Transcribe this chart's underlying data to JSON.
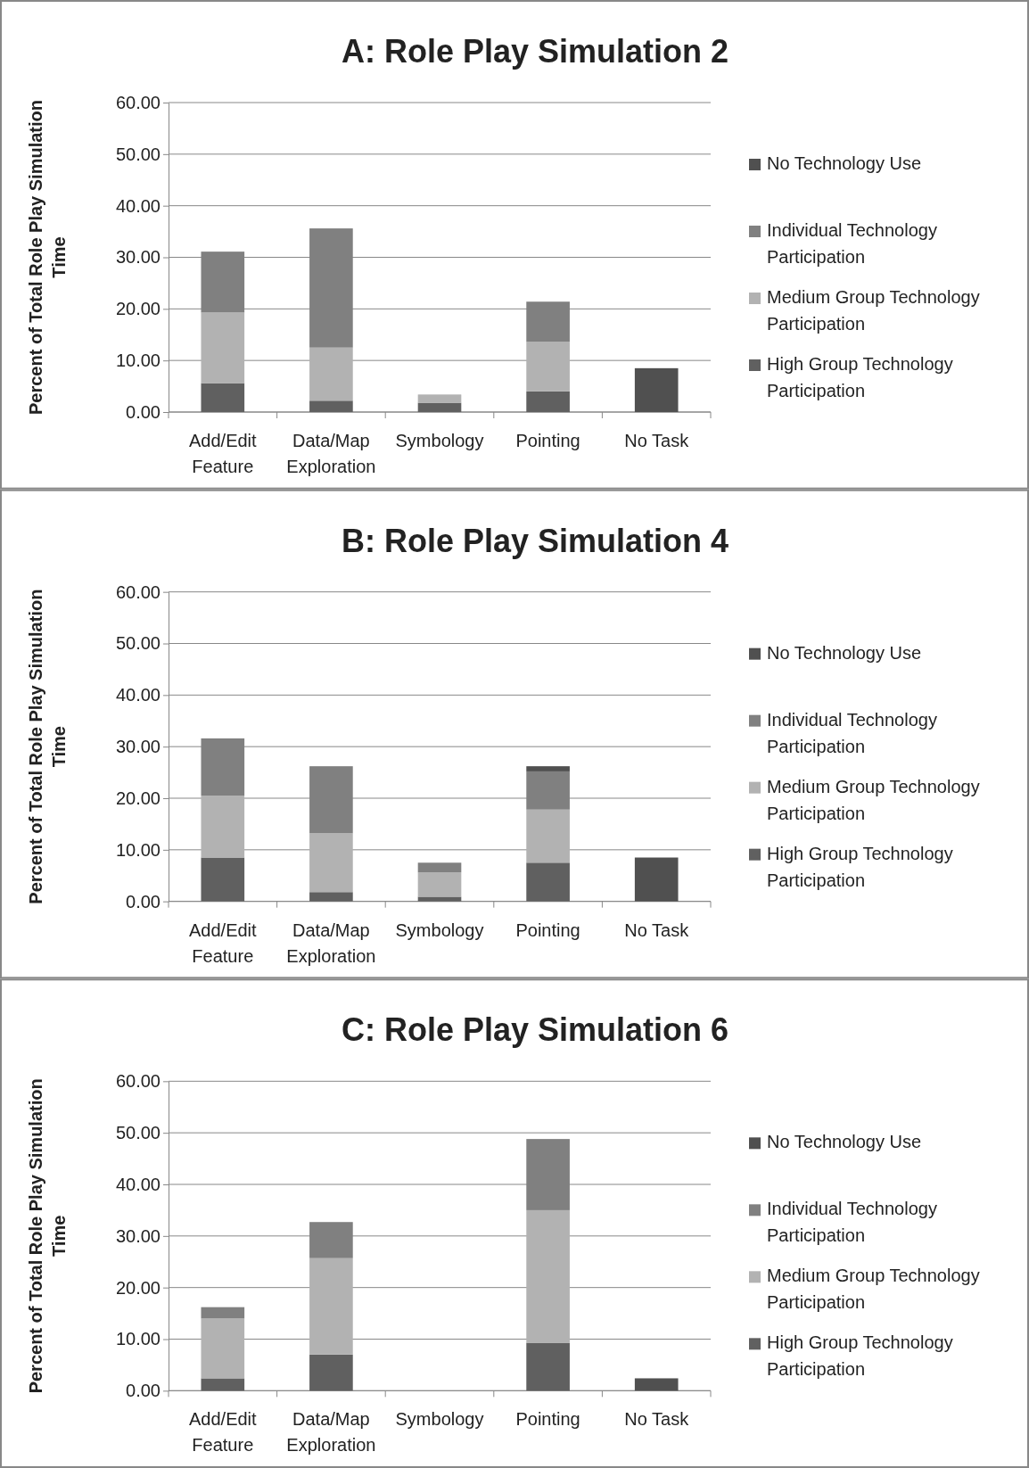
{
  "chart_data": [
    {
      "type": "bar",
      "title": "A: Role Play Simulation 2",
      "ylabel": "Percent of Total Role Play Simulation Time",
      "stacked": true,
      "categories": [
        "Add/Edit Feature",
        "Data/Map Exploration",
        "Symbology",
        "Pointing",
        "No Task"
      ],
      "ylim": [
        0,
        60
      ],
      "yticks": [
        {
          "value": 0,
          "label": "0.00"
        },
        {
          "value": 10,
          "label": "10.00"
        },
        {
          "value": 20,
          "label": "20.00"
        },
        {
          "value": 30,
          "label": "30.00"
        },
        {
          "value": 40,
          "label": "40.00"
        },
        {
          "value": 50,
          "label": "50.00"
        },
        {
          "value": 60,
          "label": "60.00"
        }
      ],
      "grid": "y",
      "legend": "right",
      "series": [
        {
          "name": "High Group Technology Participation",
          "color": "#606060",
          "values": [
            5.6,
            2.2,
            1.8,
            4.0,
            0
          ]
        },
        {
          "name": "Medium Group Technology Participation",
          "color": "#b2b2b2",
          "values": [
            13.7,
            10.3,
            1.6,
            9.6,
            0
          ]
        },
        {
          "name": "Individual Technology Participation",
          "color": "#808080",
          "values": [
            11.8,
            23.1,
            0,
            7.8,
            0
          ]
        },
        {
          "name": "No Technology Use",
          "color": "#505050",
          "values": [
            0,
            0,
            0,
            0,
            8.5
          ]
        }
      ]
    },
    {
      "type": "bar",
      "title": "B: Role Play Simulation 4",
      "ylabel": "Percent of Total Role Play Simulation Time",
      "stacked": true,
      "categories": [
        "Add/Edit Feature",
        "Data/Map Exploration",
        "Symbology",
        "Pointing",
        "No Task"
      ],
      "ylim": [
        0,
        60
      ],
      "yticks": [
        {
          "value": 0,
          "label": "0.00"
        },
        {
          "value": 10,
          "label": "10.00"
        },
        {
          "value": 20,
          "label": "20.00"
        },
        {
          "value": 30,
          "label": "30.00"
        },
        {
          "value": 40,
          "label": "40.00"
        },
        {
          "value": 50,
          "label": "50.00"
        },
        {
          "value": 60,
          "label": "60.00"
        }
      ],
      "grid": "y",
      "legend": "right",
      "series": [
        {
          "name": "High Group Technology Participation",
          "color": "#606060",
          "values": [
            8.5,
            1.8,
            0.9,
            7.5,
            0
          ]
        },
        {
          "name": "Medium Group Technology Participation",
          "color": "#b2b2b2",
          "values": [
            12.0,
            11.4,
            4.7,
            10.3,
            0
          ]
        },
        {
          "name": "Individual Technology Participation",
          "color": "#808080",
          "values": [
            11.1,
            13.0,
            1.9,
            7.4,
            0
          ]
        },
        {
          "name": "No Technology Use",
          "color": "#505050",
          "values": [
            0,
            0,
            0,
            1.0,
            8.5
          ]
        }
      ]
    },
    {
      "type": "bar",
      "title": "C: Role Play Simulation 6",
      "ylabel": "Percent of Total Role Play Simulation Time",
      "stacked": true,
      "categories": [
        "Add/Edit Feature",
        "Data/Map Exploration",
        "Symbology",
        "Pointing",
        "No Task"
      ],
      "ylim": [
        0,
        60
      ],
      "yticks": [
        {
          "value": 0,
          "label": "0.00"
        },
        {
          "value": 10,
          "label": "10.00"
        },
        {
          "value": 20,
          "label": "20.00"
        },
        {
          "value": 30,
          "label": "30.00"
        },
        {
          "value": 40,
          "label": "40.00"
        },
        {
          "value": 50,
          "label": "50.00"
        },
        {
          "value": 60,
          "label": "60.00"
        }
      ],
      "grid": "y",
      "legend": "right",
      "series": [
        {
          "name": "High Group Technology Participation",
          "color": "#606060",
          "values": [
            2.4,
            7.0,
            0,
            9.3,
            0
          ]
        },
        {
          "name": "Medium Group Technology Participation",
          "color": "#b2b2b2",
          "values": [
            11.6,
            18.7,
            0,
            25.7,
            0
          ]
        },
        {
          "name": "Individual Technology Participation",
          "color": "#808080",
          "values": [
            2.2,
            7.0,
            0,
            13.8,
            0
          ]
        },
        {
          "name": "No Technology Use",
          "color": "#505050",
          "values": [
            0,
            0,
            0,
            0,
            2.4
          ]
        }
      ]
    }
  ]
}
